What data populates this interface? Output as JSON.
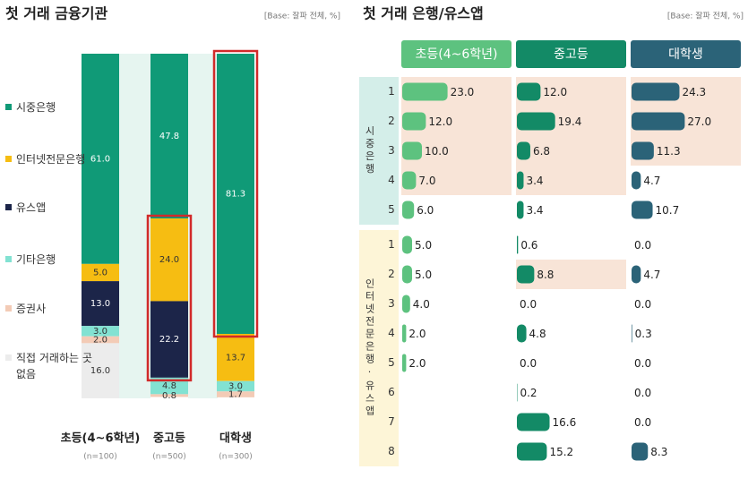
{
  "chart_data": [
    {
      "type": "stacked_bar",
      "title": "첫 거래 금융기관",
      "note": "[Base: 잘파 전체, %]",
      "categories": [
        "초등(4~6학년)",
        "중고등",
        "대학생"
      ],
      "category_notes": [
        "(n=100)",
        "(n=500)",
        "(n=300)"
      ],
      "ylim": [
        0,
        100
      ],
      "series": [
        {
          "name": "시중은행",
          "color": "#109a77",
          "values": [
            61.0,
            47.8,
            81.3
          ],
          "value_labels": [
            "61.0",
            "47.8",
            "81.3"
          ]
        },
        {
          "name": "인터넷전문은행",
          "color": "#f6bd12",
          "values": [
            5.0,
            24.0,
            13.7
          ],
          "value_labels": [
            "5.0",
            "24.0",
            "13.7"
          ]
        },
        {
          "name": "유스앱",
          "color": "#1c2549",
          "values": [
            13.0,
            22.2,
            null
          ],
          "value_labels": [
            "13.0",
            "22.2",
            null
          ]
        },
        {
          "name": "기타은행",
          "color": "#82e2d2",
          "values": [
            3.0,
            4.8,
            3.0
          ],
          "value_labels": [
            "3.0",
            "4.8",
            "3.0"
          ]
        },
        {
          "name": "증권사",
          "color": "#f3cbb6",
          "values": [
            2.0,
            0.8,
            1.7
          ],
          "value_labels": [
            "2.0",
            "0.8",
            "1.7"
          ]
        },
        {
          "name": "직접 거래하는 곳 없음",
          "color": "#ececec",
          "values": [
            16.0,
            null,
            null
          ],
          "value_labels": [
            "16.0",
            null,
            null
          ]
        }
      ]
    },
    {
      "type": "bar_table",
      "title": "첫 거래 은행/유스앱",
      "note": "[Base: 잘파 전체, %]",
      "groups": [
        {
          "label": "시중은행",
          "ranks": [
            1,
            2,
            3,
            4,
            5
          ]
        },
        {
          "label": "인터넷전문은행·유스앱",
          "ranks": [
            1,
            2,
            3,
            4,
            5,
            6,
            7,
            8
          ]
        }
      ],
      "series": [
        {
          "name": "초등(4~6학년)",
          "color": "#5dc27f",
          "values": [
            [
              23.0,
              12.0,
              10.0,
              7.0,
              6.0
            ],
            [
              5.0,
              5.0,
              4.0,
              2.0,
              2.0,
              null,
              null,
              null
            ]
          ],
          "value_labels": [
            [
              "23.0",
              "12.0",
              "10.0",
              "7.0",
              "6.0"
            ],
            [
              "5.0",
              "5.0",
              "4.0",
              "2.0",
              "2.0",
              null,
              null,
              null
            ]
          ]
        },
        {
          "name": "중고등",
          "color": "#138a66",
          "values": [
            [
              12.0,
              19.4,
              6.8,
              3.4,
              3.4
            ],
            [
              0.6,
              8.8,
              0.0,
              4.8,
              0.0,
              0.2,
              16.6,
              15.2
            ]
          ],
          "value_labels": [
            [
              "12.0",
              "19.4",
              "6.8",
              "3.4",
              "3.4"
            ],
            [
              "0.6",
              "8.8",
              "0.0",
              "4.8",
              "0.0",
              "0.2",
              "16.6",
              "15.2"
            ]
          ]
        },
        {
          "name": "대학생",
          "color": "#2b6378",
          "values": [
            [
              24.3,
              27.0,
              11.3,
              4.7,
              10.7
            ],
            [
              0.0,
              4.7,
              0.0,
              0.3,
              0.0,
              0.0,
              0.0,
              8.3
            ]
          ],
          "value_labels": [
            [
              "24.3",
              "27.0",
              "11.3",
              "4.7",
              "10.7"
            ],
            [
              "0.0",
              "4.7",
              "0.0",
              "0.3",
              "0.0",
              "0.0",
              "0.0",
              "8.3"
            ]
          ]
        }
      ]
    }
  ]
}
